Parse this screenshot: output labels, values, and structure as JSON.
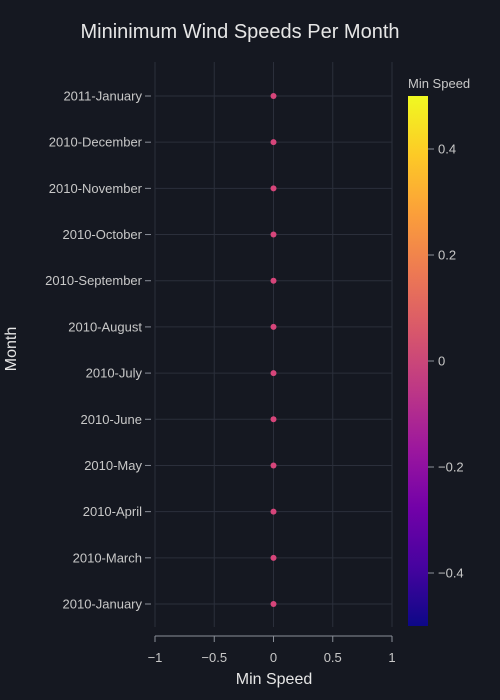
{
  "chart_data": {
    "type": "scatter",
    "title": "Mininimum Wind Speeds Per Month",
    "xlabel": "Min Speed",
    "ylabel": "Month",
    "xlim": [
      -1,
      1
    ],
    "xticks": [
      -1,
      -0.5,
      0,
      0.5,
      1
    ],
    "xtick_labels": [
      "−1",
      "−0.5",
      "0",
      "0.5",
      "1"
    ],
    "categories": [
      "2010-January",
      "2010-March",
      "2010-April",
      "2010-May",
      "2010-June",
      "2010-July",
      "2010-August",
      "2010-September",
      "2010-October",
      "2010-November",
      "2010-December",
      "2011-January"
    ],
    "values": [
      0,
      0,
      0,
      0,
      0,
      0,
      0,
      0,
      0,
      0,
      0,
      0
    ],
    "marker_color": "#d6457a",
    "grid": true,
    "colorbar": {
      "title": "Min Speed",
      "range": [
        -0.5,
        0.5
      ],
      "ticks": [
        -0.4,
        -0.2,
        0,
        0.2,
        0.4
      ],
      "tick_labels": [
        "−0.4",
        "−0.2",
        "0",
        "0.2",
        "0.4"
      ],
      "colorscale": [
        "#0d0887",
        "#46039f",
        "#7201a8",
        "#9c179e",
        "#bd3786",
        "#d8576b",
        "#ed7953",
        "#fb9f3a",
        "#fdca26",
        "#f0f921"
      ]
    }
  }
}
